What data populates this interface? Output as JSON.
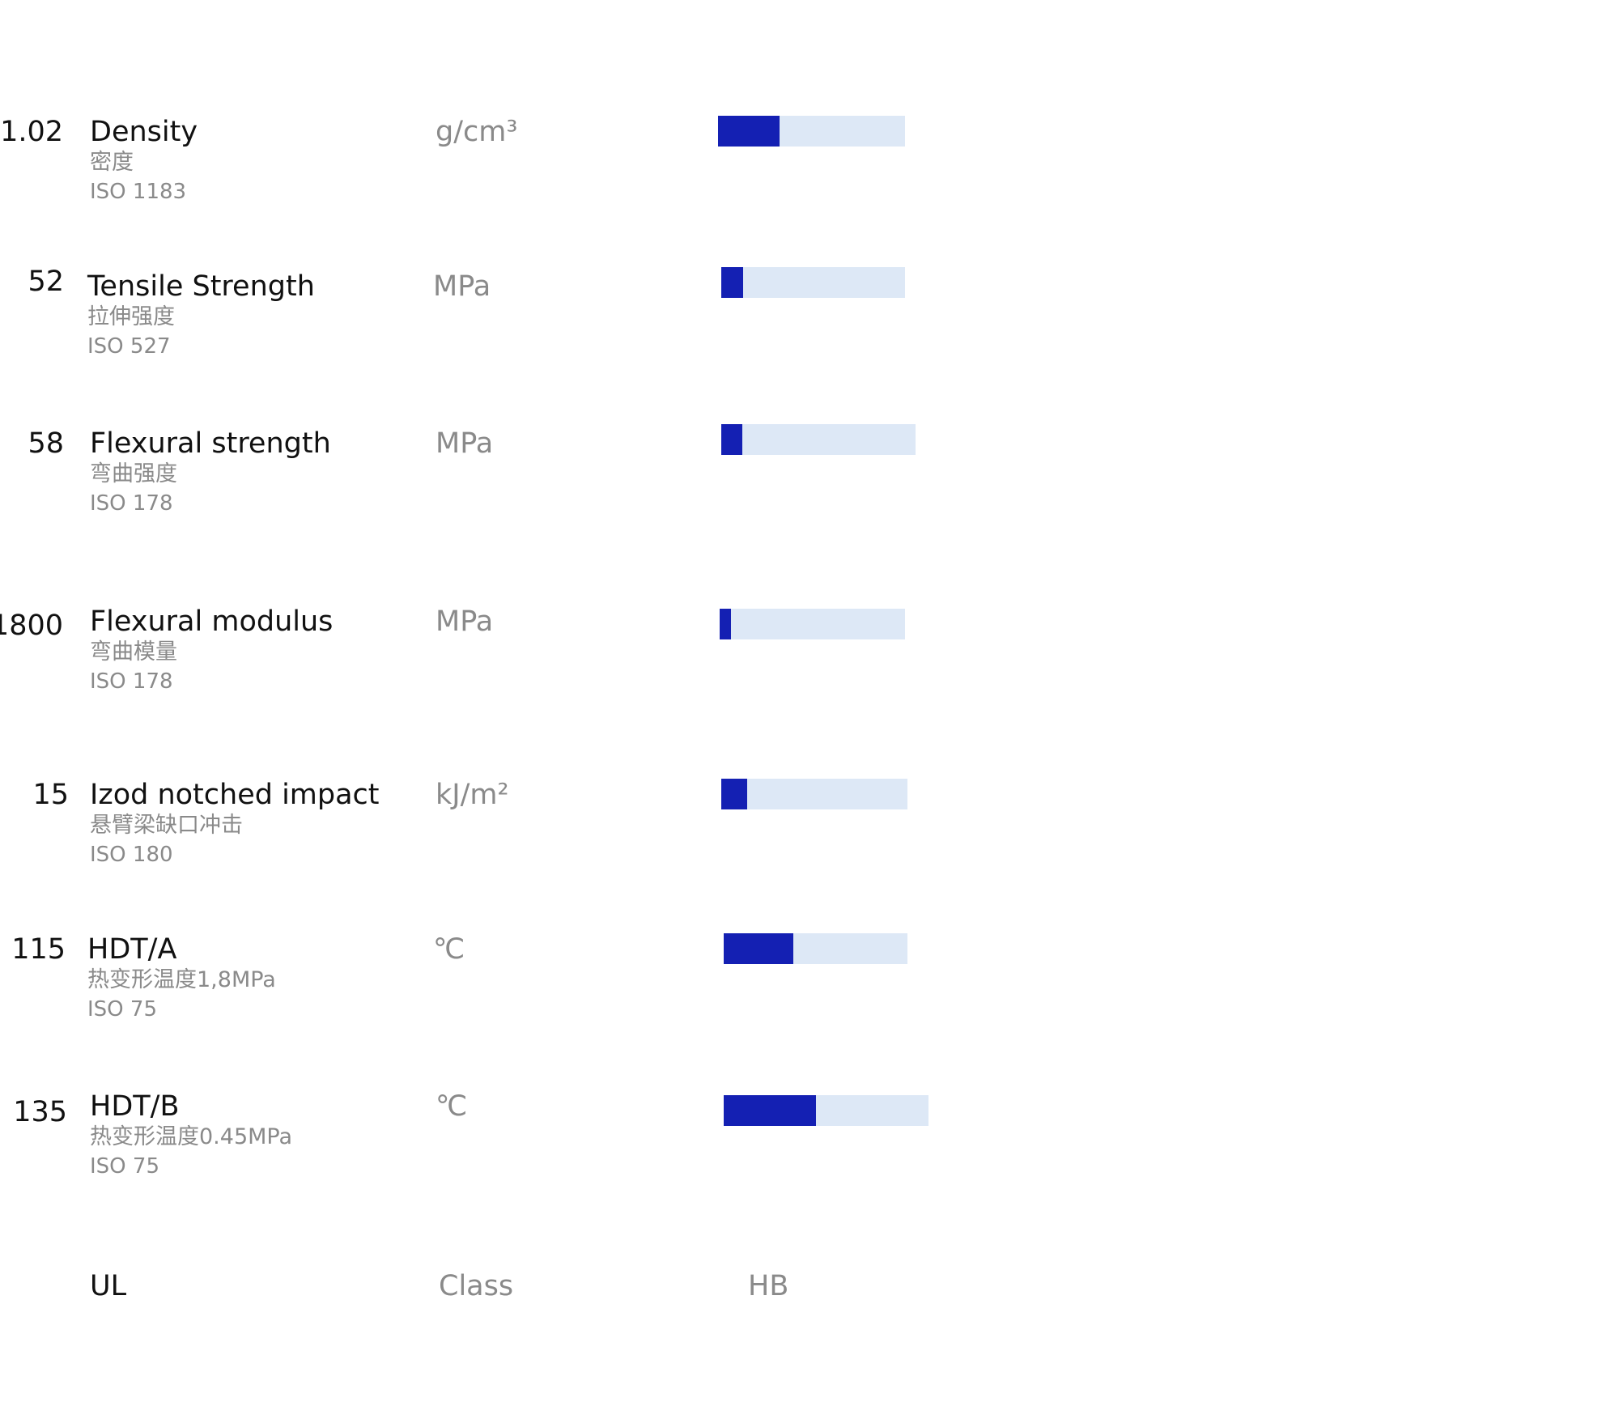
{
  "properties": [
    {
      "name": "Density",
      "name_zh": "密度",
      "standard": "ISO 1183",
      "unit": "g/cm³",
      "value": "1.02",
      "bar_fill_fraction": 0.33
    },
    {
      "name": "Tensile Strength",
      "name_zh": "拉伸强度",
      "standard": "ISO 527",
      "unit": "MPa",
      "value": "52",
      "bar_fill_fraction": 0.12
    },
    {
      "name": "Flexural strength",
      "name_zh": "弯曲强度",
      "standard": "ISO 178",
      "unit": "MPa",
      "value": "58",
      "bar_fill_fraction": 0.11
    },
    {
      "name": "Flexural modulus",
      "name_zh": "弯曲模量",
      "standard": "ISO 178",
      "unit": "MPa",
      "value": "1800",
      "bar_fill_fraction": 0.06
    },
    {
      "name": "Izod notched impact",
      "name_zh": "悬臂梁缺口冲击",
      "standard": "ISO 180",
      "unit": "kJ/m²",
      "value": "15",
      "bar_fill_fraction": 0.14
    },
    {
      "name": "HDT/A",
      "name_zh": "热变形温度1,8MPa",
      "standard": "ISO 75",
      "unit": "℃",
      "value": "115",
      "bar_fill_fraction": 0.38
    },
    {
      "name": "HDT/B",
      "name_zh": "热变形温度0.45MPa",
      "standard": "ISO 75",
      "unit": "℃",
      "value": "135",
      "bar_fill_fraction": 0.45
    }
  ],
  "ul": {
    "name": "UL",
    "unit": "Class",
    "value": "HB"
  },
  "colors": {
    "bar_fill": "#1420b3",
    "bar_track": "#dde8f6",
    "text_primary": "#111111",
    "text_secondary": "#8a8a8a"
  }
}
